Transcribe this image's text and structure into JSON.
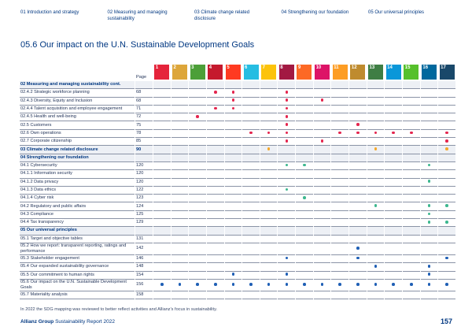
{
  "nav": [
    "01 Introduction and strategy",
    "02 Measuring and managing sustainability",
    "03 Climate change related disclosure",
    "04 Strengthening our foundation",
    "05 Our universal principles"
  ],
  "title": "05.6 Our impact on the U.N. Sustainable Development Goals",
  "page_header": "Page",
  "sdg_icons": [
    {
      "number": 1,
      "color": "#e5243b"
    },
    {
      "number": 2,
      "color": "#dda63a"
    },
    {
      "number": 3,
      "color": "#4c9f38"
    },
    {
      "number": 4,
      "color": "#c5192d"
    },
    {
      "number": 5,
      "color": "#ff3a21"
    },
    {
      "number": 6,
      "color": "#26bde2"
    },
    {
      "number": 7,
      "color": "#fcc30b"
    },
    {
      "number": 8,
      "color": "#a21942"
    },
    {
      "number": 9,
      "color": "#fd6925"
    },
    {
      "number": 10,
      "color": "#dd1367"
    },
    {
      "number": 11,
      "color": "#fd9d24"
    },
    {
      "number": 12,
      "color": "#bf8b2e"
    },
    {
      "number": 13,
      "color": "#3f7e44"
    },
    {
      "number": 14,
      "color": "#0a97d9"
    },
    {
      "number": 15,
      "color": "#56c02b"
    },
    {
      "number": 16,
      "color": "#00689d"
    },
    {
      "number": 17,
      "color": "#19486a"
    }
  ],
  "sections": [
    {
      "title": "02 Measuring and managing sustainability cont.",
      "color": "#e4254e",
      "rows": [
        {
          "label": "02.4.2 Strategic workforce planning",
          "page": 68,
          "sdgs": [
            4,
            5,
            8
          ]
        },
        {
          "label": "02.4.3 Diversity, Equity and Inclusion",
          "page": 68,
          "sdgs": [
            5,
            8,
            10
          ]
        },
        {
          "label": "02.4.4 Talent acquisition and employee engagement",
          "page": 71,
          "sdgs": [
            4,
            5,
            8
          ]
        },
        {
          "label": "02.4.5 Health and well-being",
          "page": 72,
          "sdgs": [
            3,
            8
          ]
        },
        {
          "label": "02.5 Customers",
          "page": 75,
          "sdgs": [
            8,
            12
          ]
        },
        {
          "label": "02.6 Own operations",
          "page": 78,
          "sdgs": [
            6,
            7,
            8,
            11,
            12,
            13,
            14,
            15,
            17
          ]
        },
        {
          "label": "02.7 Corporate citizenship",
          "page": 85,
          "sdgs": [
            8,
            10,
            17
          ]
        }
      ]
    },
    {
      "title": "03 Climate change related disclosure",
      "page": 90,
      "sdgs": [
        7,
        13,
        17
      ],
      "color": "#f5a82a",
      "rows": []
    },
    {
      "title": "04 Strengthening our foundation",
      "color": "#3db78f",
      "rows": [
        {
          "label": "04.1 Cybersecurity",
          "page": 120,
          "sdgs": [
            8,
            9,
            16
          ]
        },
        {
          "label": "04.1.1 Information security",
          "page": 120,
          "sdgs": []
        },
        {
          "label": "04.1.2 Data privacy",
          "page": 120,
          "sdgs": [
            16
          ]
        },
        {
          "label": "04.1.3 Data ethics",
          "page": 122,
          "sdgs": [
            8
          ]
        },
        {
          "label": "04.1.4 Cyber risk",
          "page": 123,
          "sdgs": [
            9
          ]
        },
        {
          "label": "04.2 Regulatory and public affairs",
          "page": 124,
          "sdgs": [
            13,
            16,
            17
          ]
        },
        {
          "label": "04.3 Compliance",
          "page": 125,
          "sdgs": [
            16
          ]
        },
        {
          "label": "04.4 Tax transparency",
          "page": 129,
          "sdgs": [
            16,
            17
          ]
        }
      ]
    },
    {
      "title": "05 Our universal principles",
      "color": "#1f5fb5",
      "rows": [
        {
          "label": "05.1 Target and objective tables",
          "page": 131,
          "sdgs": []
        },
        {
          "label": "05.2 How we report: transparent reporting, ratings and performance",
          "page": 142,
          "sdgs": [
            12
          ]
        },
        {
          "label": "05.3 Stakeholder engagement",
          "page": 146,
          "sdgs": [
            8,
            12,
            17
          ]
        },
        {
          "label": "05.4 Our expanded sustainability governance",
          "page": 148,
          "sdgs": [
            13,
            16
          ]
        },
        {
          "label": "05.5 Our commitment to human rights",
          "page": 154,
          "sdgs": [
            5,
            8,
            16
          ]
        },
        {
          "label": "05.6 Our impact on the U.N. Sustainable Development Goals",
          "page": 156,
          "sdgs": [
            1,
            2,
            3,
            4,
            5,
            6,
            7,
            8,
            9,
            10,
            11,
            12,
            13,
            14,
            15,
            16,
            17
          ]
        },
        {
          "label": "05.7 Materiality analysis",
          "page": 158,
          "sdgs": []
        }
      ]
    }
  ],
  "footnote": "In 2022 the SDG mapping was reviewed to better reflect activities and Allianz's focus in sustainability.",
  "footer": {
    "brand": "Allianz Group",
    "report": "Sustainability Report 2022",
    "page_number": "157"
  }
}
